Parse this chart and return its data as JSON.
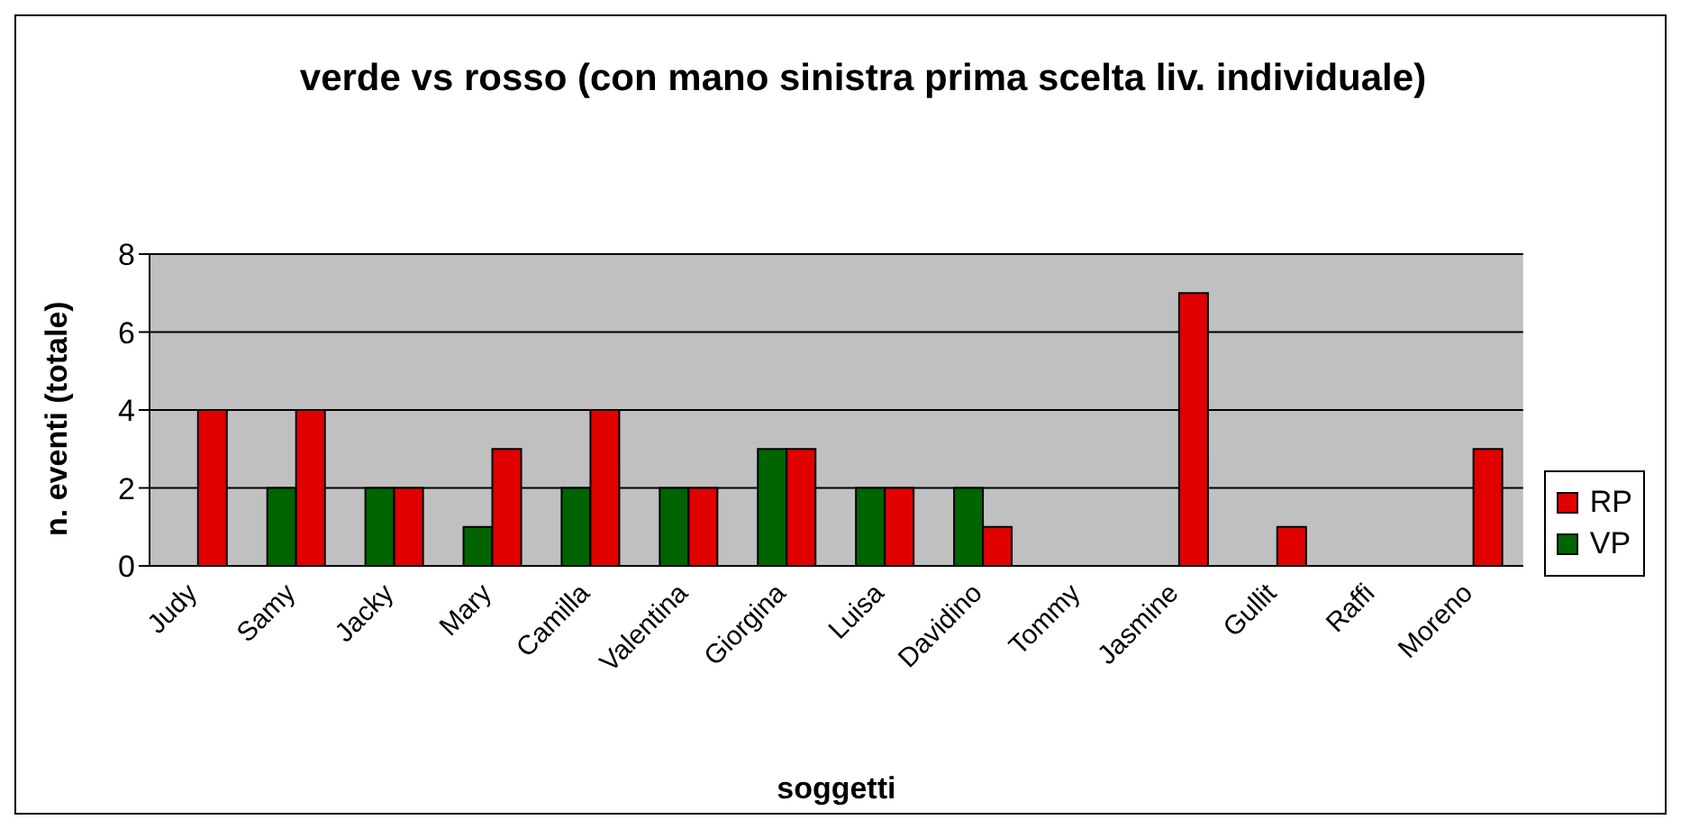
{
  "chart_data": {
    "type": "bar",
    "title": "verde vs rosso (con mano sinistra prima scelta liv. individuale)",
    "xlabel": "soggetti",
    "ylabel": "n. eventi (totale)",
    "categories": [
      "Judy",
      "Samy",
      "Jacky",
      "Mary",
      "Camilla",
      "Valentina",
      "Giorgina",
      "Luisa",
      "Davidino",
      "Tommy",
      "Jasmine",
      "Gullit",
      "Raffi",
      "Moreno"
    ],
    "series": [
      {
        "name": "VP",
        "color": "#006400",
        "values": [
          0,
          2,
          2,
          1,
          2,
          2,
          3,
          2,
          2,
          0,
          0,
          0,
          0,
          0
        ]
      },
      {
        "name": "RP",
        "color": "#e00000",
        "values": [
          4,
          4,
          2,
          3,
          4,
          2,
          3,
          2,
          1,
          0,
          7,
          1,
          0,
          3
        ]
      }
    ],
    "ylim": [
      0,
      8
    ],
    "yticks": [
      0,
      2,
      4,
      6,
      8
    ],
    "grid": "y",
    "legend": "right"
  }
}
